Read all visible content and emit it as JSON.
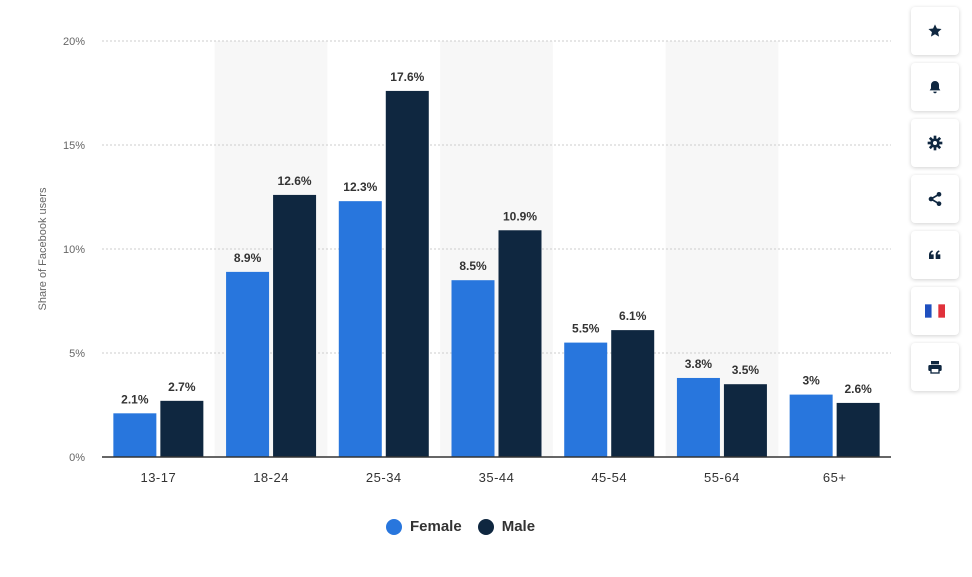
{
  "chart_data": {
    "type": "bar",
    "title": "",
    "xlabel": "",
    "ylabel": "Share of Facebook users",
    "categories": [
      "13-17",
      "18-24",
      "25-34",
      "35-44",
      "45-54",
      "55-64",
      "65+"
    ],
    "series": [
      {
        "name": "Female",
        "color": "#2876dd",
        "values": [
          2.1,
          8.9,
          12.3,
          8.5,
          5.5,
          3.8,
          3.0
        ],
        "labels": [
          "2.1%",
          "8.9%",
          "12.3%",
          "8.5%",
          "5.5%",
          "3.8%",
          "3%"
        ]
      },
      {
        "name": "Male",
        "color": "#0f2740",
        "values": [
          2.7,
          12.6,
          17.6,
          10.9,
          6.1,
          3.5,
          2.6
        ],
        "labels": [
          "2.7%",
          "12.6%",
          "17.6%",
          "10.9%",
          "6.1%",
          "3.5%",
          "2.6%"
        ]
      }
    ],
    "yticks": [
      0,
      5,
      10,
      15,
      20
    ],
    "ytick_labels": [
      "0%",
      "5%",
      "10%",
      "15%",
      "20%"
    ],
    "ylim": [
      0,
      20
    ],
    "grid": true,
    "legend_position": "bottom-center"
  },
  "toolbar": {
    "icons": [
      "star-icon",
      "bell-icon",
      "gear-icon",
      "share-icon",
      "quote-icon",
      "french-flag-icon",
      "print-icon"
    ]
  }
}
